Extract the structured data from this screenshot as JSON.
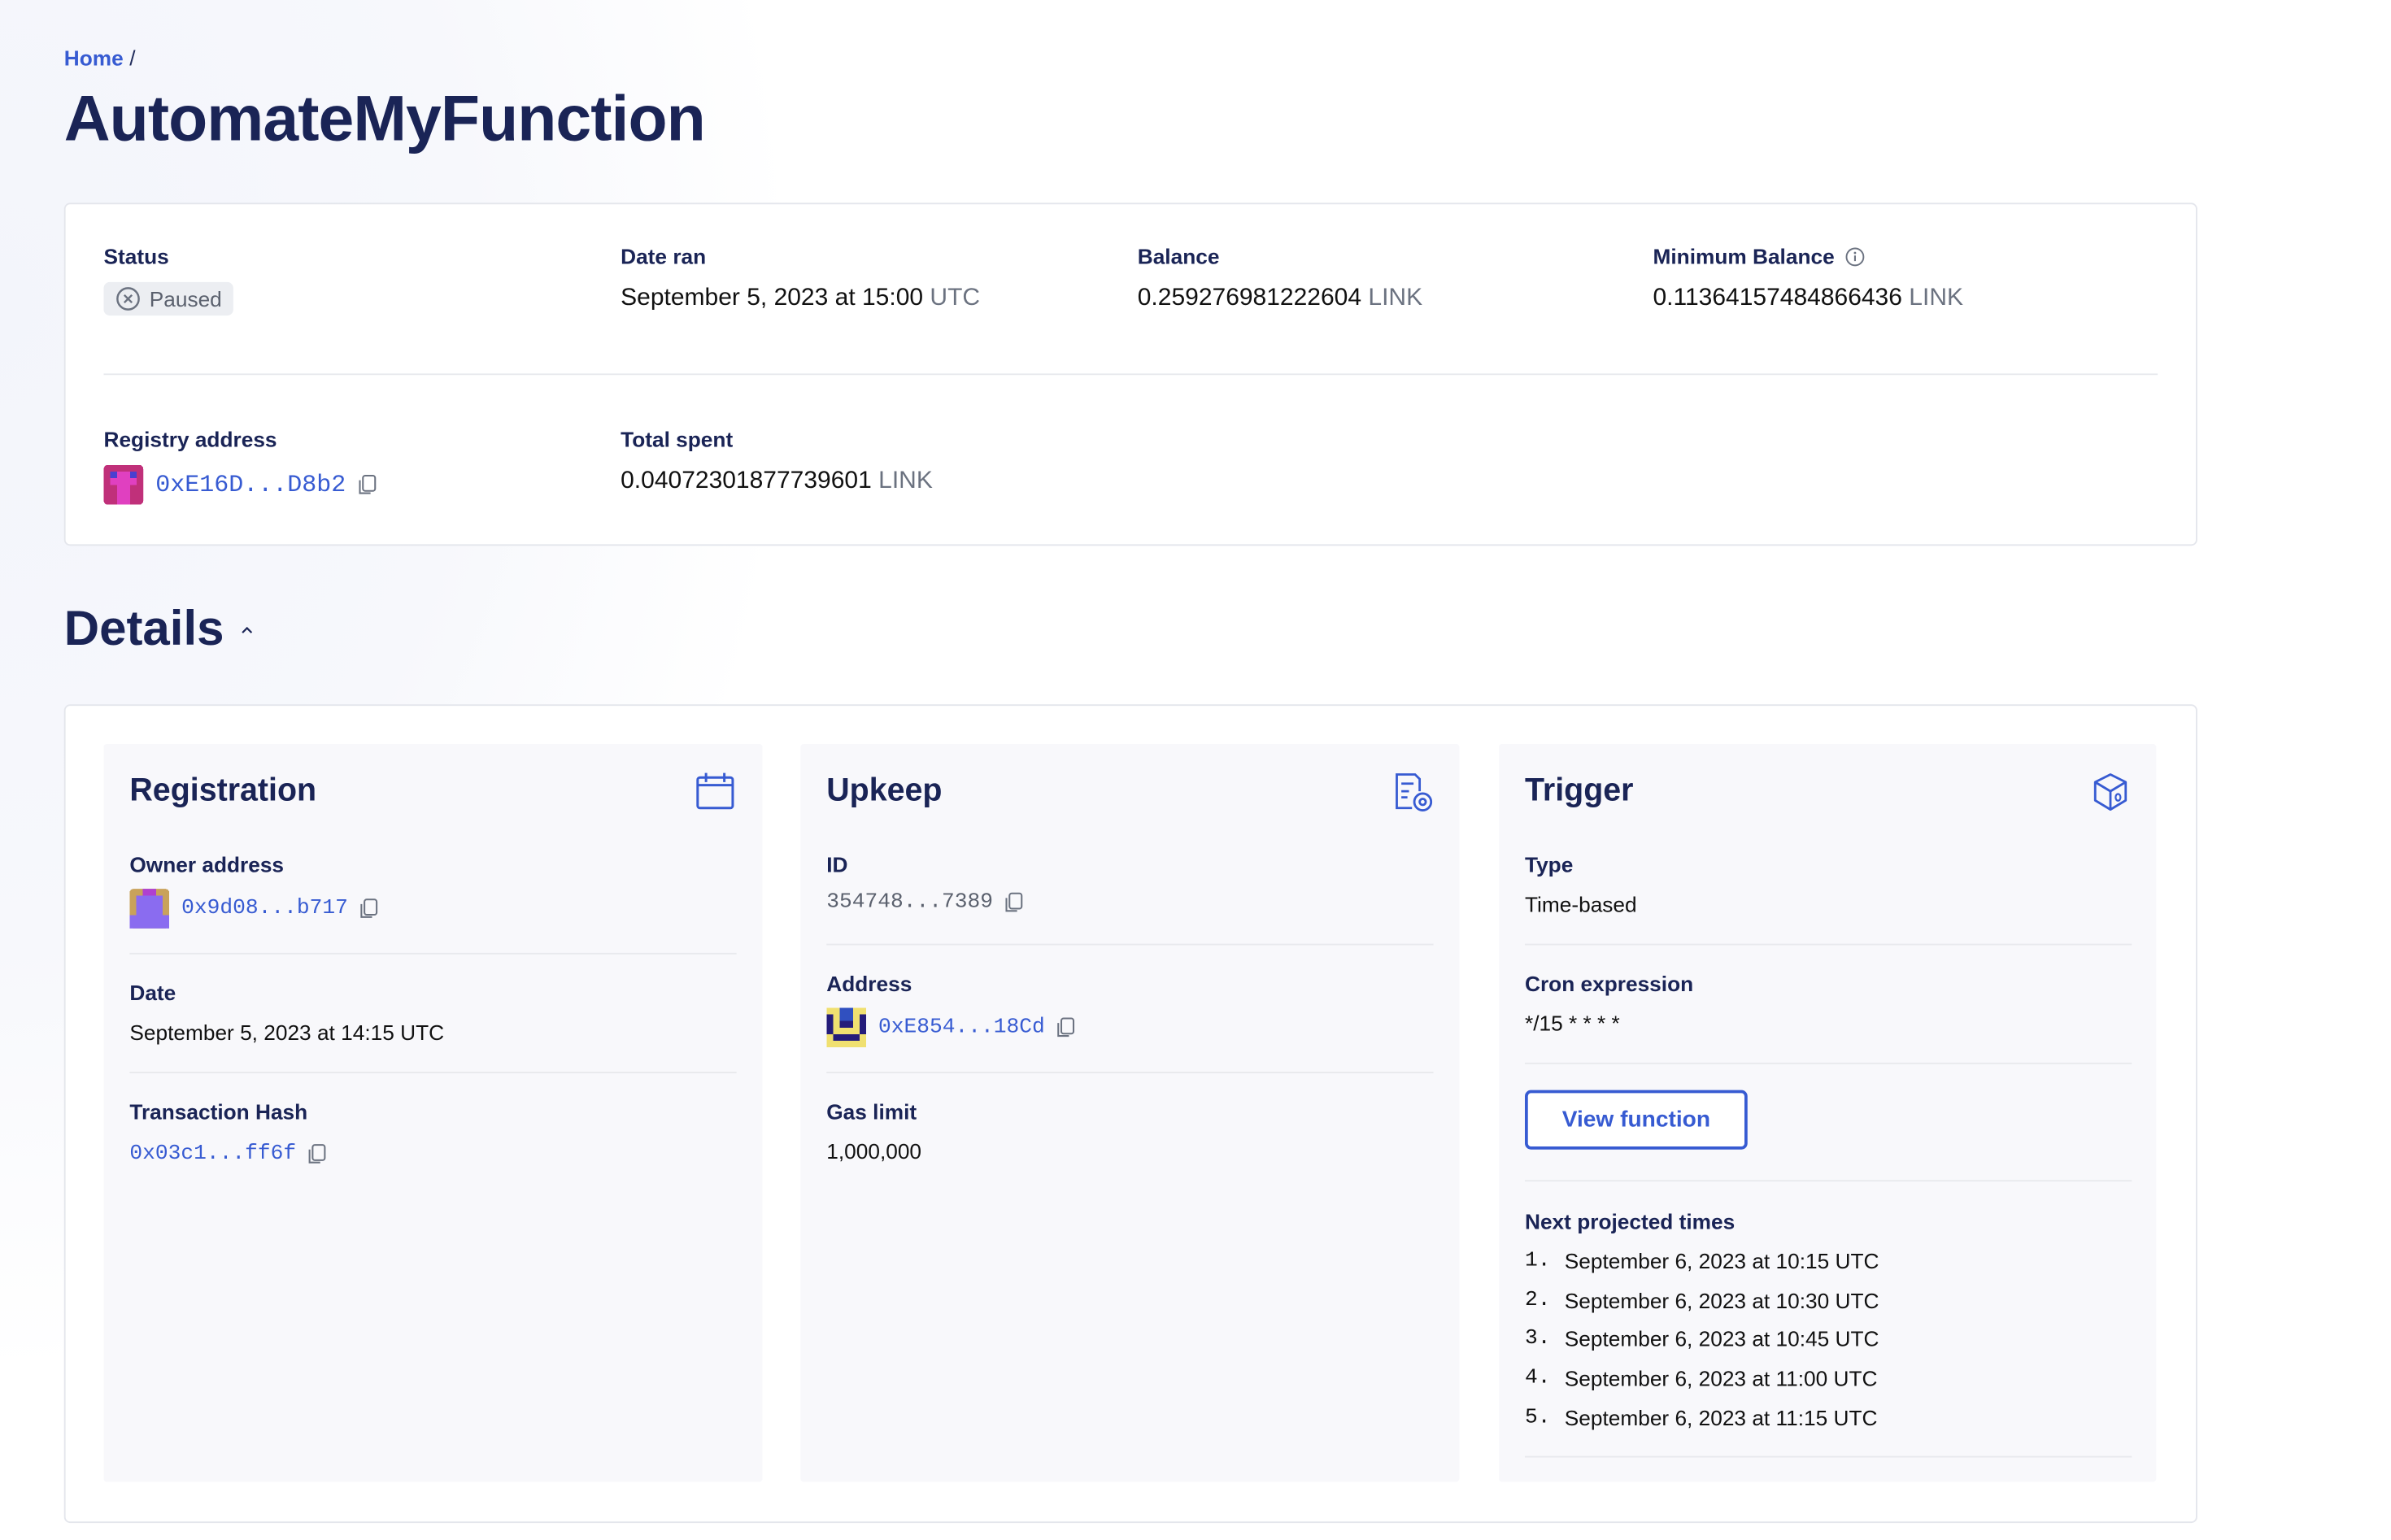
{
  "breadcrumb": {
    "home": "Home",
    "separator": "/"
  },
  "page_title": "AutomateMyFunction",
  "summary": {
    "status": {
      "label": "Status",
      "value": "Paused",
      "icon": "x-circle-icon"
    },
    "date_ran": {
      "label": "Date ran",
      "value": "September 5, 2023 at 15:00",
      "unit": "UTC"
    },
    "balance": {
      "label": "Balance",
      "value": "0.259276981222604",
      "unit": "LINK"
    },
    "min_balance": {
      "label": "Minimum Balance",
      "value": "0.11364157484866436",
      "unit": "LINK",
      "icon": "info-icon"
    },
    "registry": {
      "label": "Registry address",
      "value": "0xE16D...D8b2"
    },
    "total_spent": {
      "label": "Total spent",
      "value": "0.04072301877739601",
      "unit": "LINK"
    }
  },
  "details": {
    "heading": "Details",
    "registration": {
      "title": "Registration",
      "icon": "calendar-icon",
      "owner_label": "Owner address",
      "owner": "0x9d08...b717",
      "date_label": "Date",
      "date": "September 5, 2023 at 14:15 UTC",
      "tx_label": "Transaction Hash",
      "tx": "0x03c1...ff6f"
    },
    "upkeep": {
      "title": "Upkeep",
      "icon": "document-settings-icon",
      "id_label": "ID",
      "id": "354748...7389",
      "address_label": "Address",
      "address": "0xE854...18Cd",
      "gas_label": "Gas limit",
      "gas": "1,000,000"
    },
    "trigger": {
      "title": "Trigger",
      "icon": "cube-icon",
      "type_label": "Type",
      "type": "Time-based",
      "cron_label": "Cron expression",
      "cron": "*/15 * * * *",
      "view_button": "View function",
      "times_label": "Next projected times",
      "times": [
        {
          "n": "1.",
          "t": "September 6, 2023 at 10:15 UTC"
        },
        {
          "n": "2.",
          "t": "September 6, 2023 at 10:30 UTC"
        },
        {
          "n": "3.",
          "t": "September 6, 2023 at 10:45 UTC"
        },
        {
          "n": "4.",
          "t": "September 6, 2023 at 11:00 UTC"
        },
        {
          "n": "5.",
          "t": "September 6, 2023 at 11:15 UTC"
        }
      ]
    }
  },
  "colors": {
    "accent": "#375bd2",
    "heading": "#1a2456",
    "panel_bg": "#f8f8fb"
  }
}
